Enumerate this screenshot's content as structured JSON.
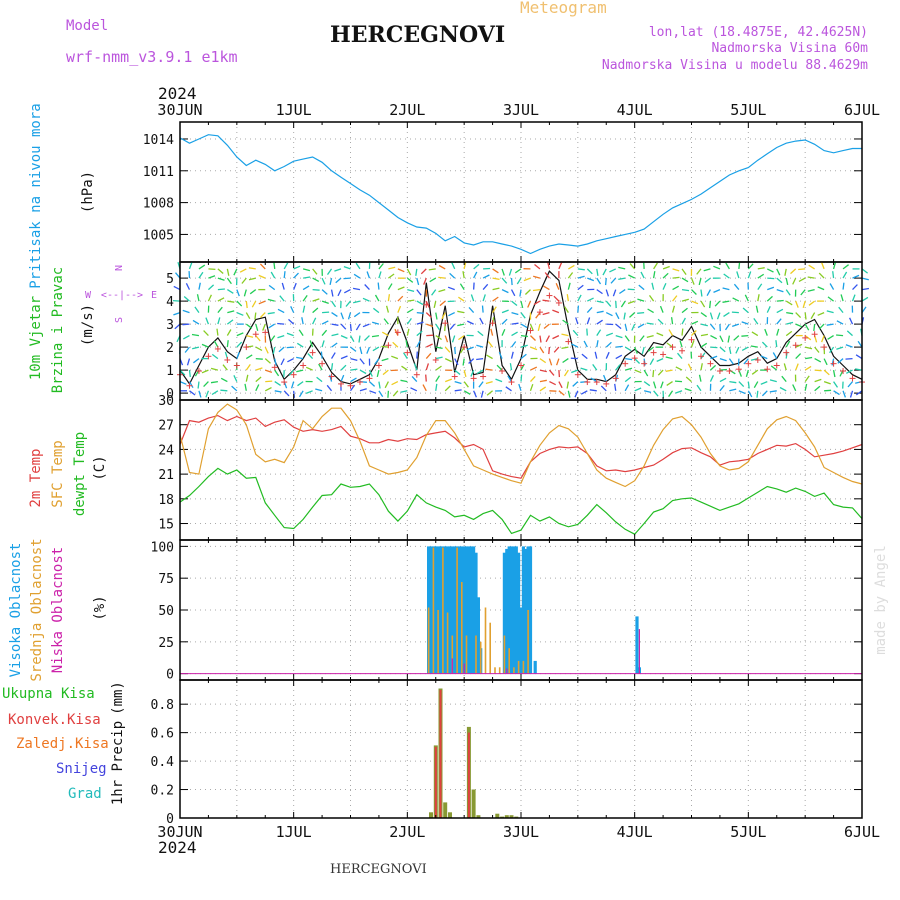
{
  "header": {
    "model_label": "Model",
    "model_name": "wrf-nmm_v3.9.1 e1km",
    "station": "HERCEGNOVI",
    "meteogram": "Meteogram",
    "lonlat": "lon,lat (18.4875E, 42.4625N)",
    "elevation": "Nadmorska Visina 60m",
    "model_elevation": "Nadmorska Visina u modelu 88.4629m"
  },
  "footer": {
    "station": "HERCEGNOVI",
    "credit": "made by Angel"
  },
  "colors": {
    "pressure": "#1aa0e6",
    "wind_label": "#22bb22",
    "t2m": "#e04040",
    "sfc": "#e0a030",
    "dewpt": "#22bb22",
    "high_cloud": "#1aa0e6",
    "mid_cloud": "#e0a030",
    "low_cloud": "#cc22aa",
    "total_precip": "#22bb22",
    "conv_precip": "#e04040",
    "frozen_precip": "#ee7722",
    "snow": "#4444dd",
    "hail": "#22bbbb",
    "grid": "#aaaaaa",
    "compass": "#bb55dd"
  },
  "chart_data": [
    {
      "type": "line",
      "panel": "pressure",
      "ylabel_parts": [
        "Pritisak na nivou mora",
        "(hPa)"
      ],
      "xticks": [
        "30JUN",
        "1JUL",
        "2JUL",
        "3JUL",
        "4JUL",
        "5JUL",
        "6JUL"
      ],
      "year": "2024",
      "xlim": [
        0,
        144
      ],
      "ylim": [
        1002.4,
        1015.6
      ],
      "yticks": [
        1005,
        1008,
        1011,
        1014
      ],
      "grid": true,
      "series": [
        {
          "x": [
            0,
            2,
            4,
            6,
            8,
            10,
            12,
            14,
            16,
            18,
            20,
            22,
            24,
            26,
            28,
            30,
            32,
            34,
            36,
            38,
            40,
            42,
            44,
            46,
            48,
            50,
            52,
            54,
            56,
            58,
            60,
            62,
            64,
            66,
            68,
            70,
            72,
            74,
            76,
            78,
            80,
            82,
            84,
            86,
            88,
            90,
            92,
            94,
            96,
            98,
            100,
            102,
            104,
            106,
            108,
            110,
            112,
            114,
            116,
            118,
            120,
            122,
            124,
            126,
            128,
            130,
            132,
            134,
            136,
            138,
            140,
            142,
            144
          ],
          "y": [
            1014.1,
            1013.6,
            1014.0,
            1014.4,
            1014.3,
            1013.4,
            1012.3,
            1011.5,
            1012.0,
            1011.6,
            1011.0,
            1011.4,
            1011.9,
            1012.1,
            1012.3,
            1011.8,
            1011.0,
            1010.4,
            1009.8,
            1009.2,
            1008.7,
            1008.0,
            1007.3,
            1006.6,
            1006.1,
            1005.7,
            1005.6,
            1005.1,
            1004.4,
            1004.8,
            1004.2,
            1004.0,
            1004.3,
            1004.3,
            1004.1,
            1003.9,
            1003.6,
            1003.2,
            1003.6,
            1003.9,
            1004.1,
            1004.0,
            1003.9,
            1004.1,
            1004.4,
            1004.6,
            1004.8,
            1005.0,
            1005.2,
            1005.5,
            1006.2,
            1006.9,
            1007.5,
            1007.9,
            1008.3,
            1008.8,
            1009.4,
            1010.0,
            1010.6,
            1011.0,
            1011.3,
            1012.0,
            1012.6,
            1013.2,
            1013.6,
            1013.8,
            1013.9,
            1013.5,
            1012.9,
            1012.7,
            1012.9,
            1013.1,
            1013.1
          ]
        }
      ]
    },
    {
      "type": "line",
      "panel": "wind",
      "ylabel_parts": [
        "10m Vjetar",
        "Brzina i Pravac",
        "(m/s)"
      ],
      "compass": [
        "N",
        "W",
        "E",
        "S",
        "<--|-->"
      ],
      "xlim": [
        0,
        144
      ],
      "ylim": [
        -0.3,
        5.7
      ],
      "yticks": [
        0,
        1,
        2,
        3,
        4,
        5
      ],
      "series": [
        {
          "x": [
            0,
            2,
            4,
            6,
            8,
            10,
            12,
            14,
            16,
            18,
            20,
            22,
            24,
            26,
            28,
            30,
            32,
            34,
            36,
            38,
            40,
            42,
            44,
            46,
            48,
            50,
            52,
            54,
            56,
            58,
            60,
            62,
            64,
            66,
            68,
            70,
            72,
            74,
            76,
            78,
            80,
            82,
            84,
            86,
            88,
            90,
            92,
            94,
            96,
            98,
            100,
            102,
            104,
            106,
            108,
            110,
            112,
            114,
            116,
            118,
            120,
            122,
            124,
            126,
            128,
            130,
            132,
            134,
            136,
            138,
            140,
            142,
            144
          ],
          "y": [
            1.0,
            0.4,
            1.2,
            2.0,
            2.4,
            1.8,
            1.5,
            2.5,
            3.2,
            3.3,
            1.4,
            0.6,
            1.0,
            1.5,
            2.2,
            1.6,
            0.9,
            0.5,
            0.4,
            0.6,
            0.8,
            1.5,
            2.6,
            3.3,
            2.2,
            1.0,
            4.8,
            1.8,
            3.8,
            0.9,
            2.5,
            0.8,
            0.9,
            3.8,
            1.2,
            0.6,
            1.5,
            3.4,
            4.4,
            5.3,
            4.9,
            2.8,
            1.0,
            0.6,
            0.6,
            0.5,
            0.8,
            1.6,
            1.9,
            1.6,
            2.2,
            2.1,
            2.5,
            2.3,
            2.9,
            2.0,
            1.6,
            1.2,
            1.2,
            1.3,
            1.6,
            1.8,
            1.3,
            1.5,
            2.2,
            2.6,
            3.0,
            3.2,
            2.5,
            1.6,
            1.2,
            0.8,
            0.6
          ]
        }
      ]
    },
    {
      "type": "line",
      "panel": "temperature",
      "ylabel_parts": [
        "2m Temp",
        "SFC Temp",
        "dewpt Temp",
        "(C)"
      ],
      "xlim": [
        0,
        144
      ],
      "ylim": [
        13,
        30
      ],
      "yticks": [
        15,
        18,
        21,
        24,
        27,
        30
      ],
      "series": [
        {
          "name": "2m Temp",
          "x": [
            0,
            2,
            4,
            6,
            8,
            10,
            12,
            14,
            16,
            18,
            20,
            22,
            24,
            26,
            28,
            30,
            32,
            34,
            36,
            38,
            40,
            42,
            44,
            46,
            48,
            50,
            52,
            54,
            56,
            58,
            60,
            62,
            64,
            66,
            68,
            70,
            72,
            74,
            76,
            78,
            80,
            82,
            84,
            86,
            88,
            90,
            92,
            94,
            96,
            98,
            100,
            102,
            104,
            106,
            108,
            110,
            112,
            114,
            116,
            118,
            120,
            122,
            124,
            126,
            128,
            130,
            132,
            134,
            136,
            138,
            140,
            142,
            144
          ],
          "y": [
            24.6,
            27.5,
            27.3,
            27.8,
            28.1,
            27.5,
            28.0,
            27.5,
            27.8,
            26.8,
            27.3,
            27.6,
            26.7,
            26.2,
            26.4,
            26.2,
            26.4,
            26.8,
            25.6,
            25.3,
            24.8,
            24.8,
            25.2,
            25.0,
            25.3,
            25.2,
            25.8,
            26.0,
            26.2,
            25.4,
            24.3,
            24.6,
            24.0,
            21.4,
            21.0,
            20.7,
            20.5,
            22.5,
            23.5,
            24.0,
            24.3,
            24.2,
            24.3,
            23.5,
            22.0,
            21.4,
            21.5,
            21.3,
            21.5,
            21.8,
            22.1,
            22.8,
            23.6,
            24.1,
            24.2,
            23.6,
            23.1,
            22.1,
            22.5,
            22.6,
            22.8,
            23.5,
            24.0,
            24.5,
            24.4,
            24.7,
            24.0,
            23.1,
            23.3,
            23.5,
            23.8,
            24.2,
            24.6
          ]
        },
        {
          "name": "SFC Temp",
          "x": [
            0,
            2,
            4,
            6,
            8,
            10,
            12,
            14,
            16,
            18,
            20,
            22,
            24,
            26,
            28,
            30,
            32,
            34,
            36,
            38,
            40,
            42,
            44,
            46,
            48,
            50,
            52,
            54,
            56,
            58,
            60,
            62,
            64,
            66,
            68,
            70,
            72,
            74,
            76,
            78,
            80,
            82,
            84,
            86,
            88,
            90,
            92,
            94,
            96,
            98,
            100,
            102,
            104,
            106,
            108,
            110,
            112,
            114,
            116,
            118,
            120,
            122,
            124,
            126,
            128,
            130,
            132,
            134,
            136,
            138,
            140,
            142,
            144
          ],
          "y": [
            25.8,
            21.2,
            21.0,
            26.5,
            28.5,
            29.5,
            28.8,
            27.0,
            23.4,
            22.5,
            22.8,
            22.4,
            24.3,
            27.5,
            26.5,
            28.0,
            29.0,
            29.0,
            27.5,
            25.0,
            22.0,
            21.5,
            21.0,
            21.2,
            21.5,
            23.0,
            25.7,
            27.5,
            27.5,
            26.0,
            24.0,
            22.0,
            21.5,
            21.0,
            20.6,
            20.2,
            19.9,
            22.5,
            24.5,
            26.0,
            26.9,
            26.5,
            25.5,
            23.5,
            21.5,
            20.5,
            20.0,
            19.5,
            20.2,
            22.0,
            24.5,
            26.4,
            27.7,
            28.0,
            27.0,
            25.5,
            23.5,
            22.0,
            21.5,
            21.7,
            22.5,
            24.5,
            26.5,
            27.6,
            28.0,
            27.5,
            26.0,
            24.3,
            21.8,
            21.2,
            20.6,
            20.1,
            19.8
          ]
        },
        {
          "name": "dewpt Temp",
          "x": [
            0,
            2,
            4,
            6,
            8,
            10,
            12,
            14,
            16,
            18,
            20,
            22,
            24,
            26,
            28,
            30,
            32,
            34,
            36,
            38,
            40,
            42,
            44,
            46,
            48,
            50,
            52,
            54,
            56,
            58,
            60,
            62,
            64,
            66,
            68,
            70,
            72,
            74,
            76,
            78,
            80,
            82,
            84,
            86,
            88,
            90,
            92,
            94,
            96,
            98,
            100,
            102,
            104,
            106,
            108,
            110,
            112,
            114,
            116,
            118,
            120,
            122,
            124,
            126,
            128,
            130,
            132,
            134,
            136,
            138,
            140,
            142,
            144
          ],
          "y": [
            17.6,
            18.4,
            19.5,
            20.7,
            21.7,
            21.0,
            21.5,
            20.5,
            20.6,
            17.5,
            16.0,
            14.5,
            14.4,
            15.5,
            17.0,
            18.4,
            18.5,
            19.8,
            19.4,
            19.5,
            19.8,
            18.5,
            16.5,
            15.3,
            16.5,
            18.5,
            17.5,
            17.0,
            16.6,
            15.8,
            16.0,
            15.5,
            16.2,
            16.6,
            15.5,
            13.8,
            14.2,
            16.0,
            15.3,
            15.8,
            15.0,
            14.6,
            14.9,
            16.0,
            17.3,
            16.3,
            15.2,
            14.3,
            13.7,
            15.0,
            16.4,
            16.8,
            17.8,
            18.0,
            18.1,
            17.6,
            17.1,
            16.6,
            17.0,
            17.4,
            18.1,
            18.8,
            19.5,
            19.2,
            18.8,
            19.3,
            18.9,
            18.3,
            18.7,
            17.3,
            17.0,
            16.9,
            15.6
          ]
        }
      ]
    },
    {
      "type": "bar",
      "panel": "clouds",
      "ylabel_parts": [
        "Visoka Oblacnost",
        "Srednja Oblacnost",
        "Niska Oblacnost",
        "(%)"
      ],
      "xlim": [
        0,
        144
      ],
      "ylim": [
        -5,
        105
      ],
      "yticks": [
        0,
        25,
        50,
        75,
        100
      ],
      "series": [
        {
          "name": "Visoka Oblacnost",
          "x": [
            52.5,
            53,
            53.5,
            54,
            54.5,
            55,
            55.5,
            56,
            56.5,
            57,
            57.5,
            58,
            58.5,
            59,
            59.5,
            60,
            60.5,
            61,
            61.5,
            62,
            62.5,
            63,
            63.5,
            64,
            64.5,
            65,
            65.5,
            66,
            66.5,
            67,
            67.5,
            68,
            68.5,
            69,
            69.5,
            70,
            70.5,
            71,
            71.5,
            72,
            72.5,
            73,
            73.5,
            74,
            74.5,
            75,
            75.5,
            76,
            96.5,
            97
          ],
          "y": [
            100,
            100,
            100,
            100,
            100,
            100,
            100,
            100,
            100,
            100,
            100,
            100,
            100,
            100,
            100,
            100,
            100,
            100,
            100,
            100,
            95,
            60,
            20,
            0,
            0,
            0,
            0,
            0,
            0,
            0,
            0,
            0,
            95,
            98,
            100,
            100,
            100,
            100,
            95,
            52,
            100,
            98,
            100,
            100,
            0,
            10,
            0,
            0,
            45,
            5
          ]
        },
        {
          "name": "Srednja Oblacnost",
          "x": [
            52.5,
            53.5,
            54.5,
            55.5,
            56.5,
            57.5,
            58.5,
            59.5,
            60.5,
            62.5,
            63.5,
            64.5,
            65.5,
            66.5,
            67.5,
            68.5,
            69.5,
            70.5,
            71.5,
            72.5,
            73.5,
            74.5
          ],
          "y": [
            52,
            99,
            50,
            99,
            48,
            30,
            99,
            72,
            30,
            30,
            25,
            52,
            40,
            5,
            5,
            30,
            20,
            5,
            10,
            10,
            50,
            0
          ]
        },
        {
          "name": "Niska Oblacnost",
          "x": [
            57.5,
            60,
            69,
            97
          ],
          "y": [
            12,
            8,
            4,
            35
          ]
        }
      ]
    },
    {
      "type": "bar",
      "panel": "precip",
      "ylabel_parts": [
        "1hr Precip",
        "(mm)"
      ],
      "legend": [
        "Ukupna Kisa",
        "Konvek.Kisa",
        "Zaledj.Kisa",
        "Snijeg",
        "Grad"
      ],
      "xticks": [
        "30JUN",
        "1JUL",
        "2JUL",
        "3JUL",
        "4JUL",
        "5JUL",
        "6JUL"
      ],
      "year": "2024",
      "xlim": [
        0,
        144
      ],
      "ylim": [
        0,
        0.97
      ],
      "yticks": [
        0,
        0.2,
        0.4,
        0.6,
        0.8
      ],
      "series": [
        {
          "name": "Ukupna Kisa",
          "x": [
            53,
            54,
            55,
            56,
            57,
            61,
            62,
            63,
            67,
            68,
            69,
            70,
            71
          ],
          "y": [
            0.04,
            0.51,
            0.91,
            0.11,
            0.04,
            0.64,
            0.2,
            0.02,
            0.03,
            0.01,
            0.02,
            0.02,
            0.01
          ]
        },
        {
          "name": "Konvek.Kisa",
          "x": [
            54,
            55,
            61
          ],
          "y": [
            0.5,
            0.9,
            0.6
          ]
        }
      ]
    }
  ]
}
